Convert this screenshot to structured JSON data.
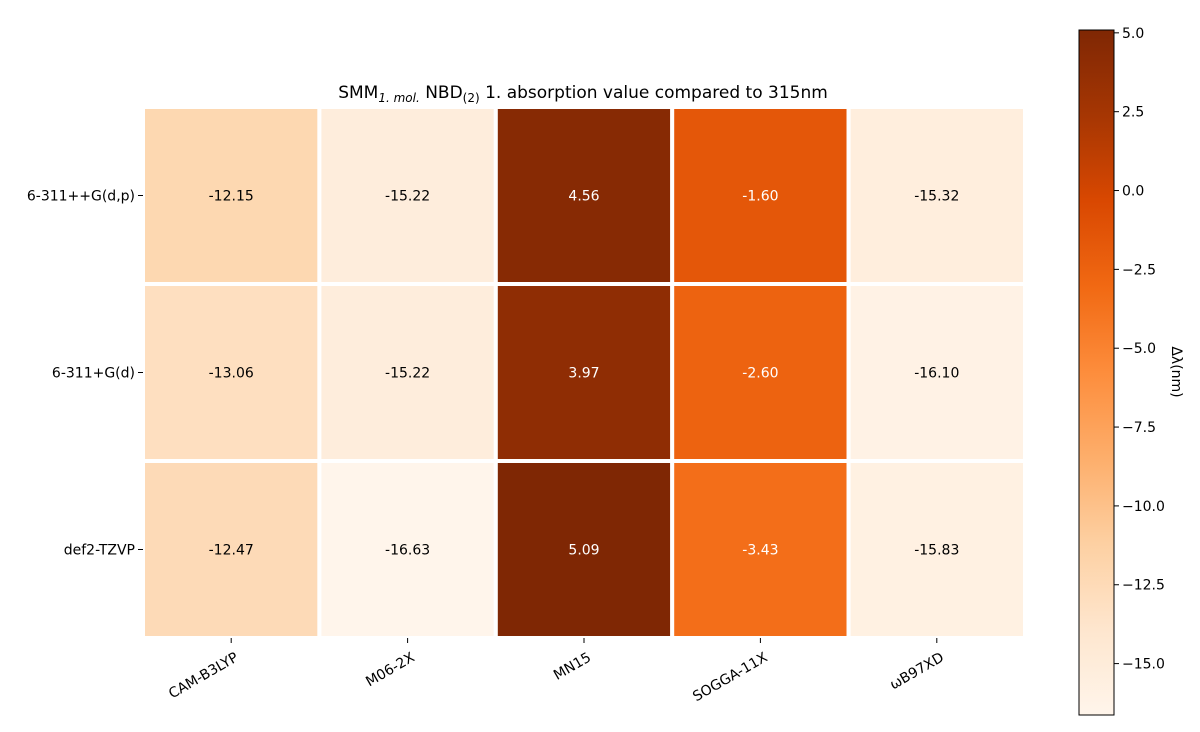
{
  "chart_data": {
    "type": "heatmap",
    "title": {
      "main": "SMM",
      "main_sub": "1. mol.",
      "middle": " NBD",
      "middle_sub": "(2)",
      "rest": " 1. absorption value compared to 315nm"
    },
    "x_categories": [
      "CAM-B3LYP",
      "M06-2X",
      "MN15",
      "SOGGA-11X",
      "ωB97XD"
    ],
    "y_categories": [
      "6-311++G(d,p)",
      "6-311+G(d)",
      "def2-TZVP"
    ],
    "values": [
      [
        -12.15,
        -15.22,
        4.56,
        -1.6,
        -15.32
      ],
      [
        -13.06,
        -15.22,
        3.97,
        -2.6,
        -16.1
      ],
      [
        -12.47,
        -16.63,
        5.09,
        -3.43,
        -15.83
      ]
    ],
    "value_labels": [
      [
        "-12.15",
        "-15.22",
        "4.56",
        "-1.60",
        "-15.32"
      ],
      [
        "-13.06",
        "-15.22",
        "3.97",
        "-2.60",
        "-16.10"
      ],
      [
        "-12.47",
        "-16.63",
        "5.09",
        "-3.43",
        "-15.83"
      ]
    ],
    "colorbar": {
      "label": "Δλ(nm)",
      "range": [
        -16.63,
        5.09
      ],
      "ticks": [
        "5.0",
        "2.5",
        "0.0",
        "−2.5",
        "−5.0",
        "−7.5",
        "−10.0",
        "−12.5",
        "−15.0"
      ],
      "tick_values": [
        5.0,
        2.5,
        0.0,
        -2.5,
        -5.0,
        -7.5,
        -10.0,
        -12.5,
        -15.0
      ],
      "colormap": "Oranges"
    },
    "grid": false,
    "cell_separator_color": "#ffffff"
  }
}
